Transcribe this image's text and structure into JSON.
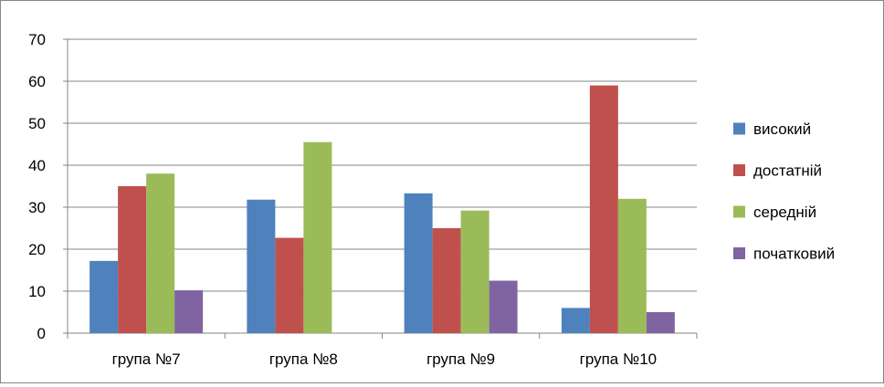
{
  "chart_data": {
    "type": "bar",
    "title": "",
    "xlabel": "",
    "ylabel": "",
    "categories": [
      "група №7",
      "група №8",
      "група №9",
      "група №10"
    ],
    "series": [
      {
        "name": "високий",
        "color": "#4F81BD",
        "values": [
          17.2,
          31.8,
          33.3,
          6.0
        ]
      },
      {
        "name": "достатній",
        "color": "#C0504D",
        "values": [
          35.0,
          22.7,
          25.0,
          59.0
        ]
      },
      {
        "name": "середній",
        "color": "#9BBB59",
        "values": [
          38.0,
          45.5,
          29.2,
          32.0
        ]
      },
      {
        "name": "початковий",
        "color": "#8064A2",
        "values": [
          10.2,
          0,
          12.5,
          5.0
        ]
      }
    ],
    "ylim": [
      0,
      70
    ],
    "yticks": [
      0,
      10,
      20,
      30,
      40,
      50,
      60,
      70
    ],
    "grid": true,
    "legend_position": "right"
  }
}
